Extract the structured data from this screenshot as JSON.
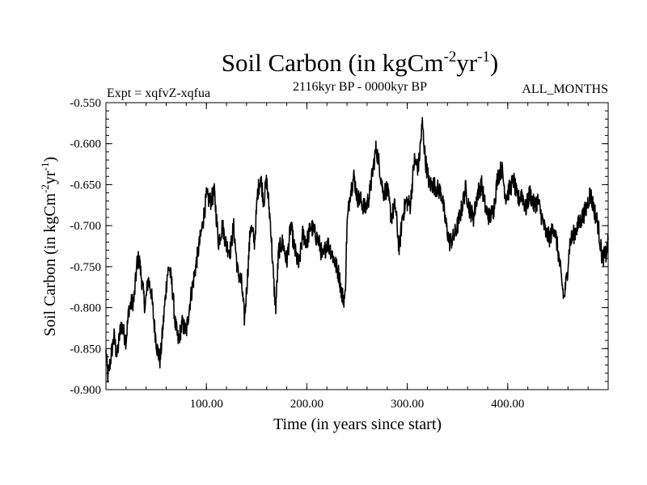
{
  "chart_data": {
    "type": "line",
    "title": "Soil Carbon (in kgCm",
    "title_unit": {
      "sup1": "-2",
      "mid": "yr",
      "sup2": "-1",
      "tail": ")"
    },
    "subtitle_left": "Expt = xqfvZ-xqfua",
    "subtitle_center": "2116kyr BP - 0000kyr BP",
    "subtitle_right": "ALL_MONTHS",
    "xlabel": "Time (in years since start)",
    "ylabel": "Soil Carbon (in kgCm",
    "ylabel_unit": {
      "sup1": "-2",
      "mid": "yr",
      "sup2": "-1",
      "tail": ")"
    },
    "xlim": [
      0,
      500
    ],
    "ylim": [
      -0.9,
      -0.55
    ],
    "x_ticks": [
      100,
      200,
      300,
      400
    ],
    "x_tick_labels": [
      "100.00",
      "200.00",
      "300.00",
      "400.00"
    ],
    "y_ticks": [
      -0.9,
      -0.85,
      -0.8,
      -0.75,
      -0.7,
      -0.65,
      -0.6,
      -0.55
    ],
    "y_tick_labels": [
      "-0.900",
      "-0.850",
      "-0.800",
      "-0.750",
      "-0.700",
      "-0.650",
      "-0.600",
      "-0.550"
    ],
    "color": "#000000",
    "series": [
      {
        "name": "Soil Carbon",
        "keypoints": [
          [
            0,
            -0.855
          ],
          [
            2,
            -0.885
          ],
          [
            5,
            -0.86
          ],
          [
            8,
            -0.835
          ],
          [
            11,
            -0.86
          ],
          [
            15,
            -0.82
          ],
          [
            20,
            -0.84
          ],
          [
            23,
            -0.8
          ],
          [
            28,
            -0.79
          ],
          [
            31,
            -0.745
          ],
          [
            33,
            -0.74
          ],
          [
            36,
            -0.77
          ],
          [
            39,
            -0.8
          ],
          [
            42,
            -0.765
          ],
          [
            45,
            -0.78
          ],
          [
            48,
            -0.82
          ],
          [
            51,
            -0.85
          ],
          [
            54,
            -0.865
          ],
          [
            57,
            -0.82
          ],
          [
            61,
            -0.76
          ],
          [
            63,
            -0.75
          ],
          [
            66,
            -0.775
          ],
          [
            69,
            -0.82
          ],
          [
            72,
            -0.84
          ],
          [
            76,
            -0.82
          ],
          [
            80,
            -0.83
          ],
          [
            84,
            -0.79
          ],
          [
            88,
            -0.76
          ],
          [
            92,
            -0.73
          ],
          [
            96,
            -0.7
          ],
          [
            100,
            -0.665
          ],
          [
            104,
            -0.67
          ],
          [
            108,
            -0.66
          ],
          [
            112,
            -0.72
          ],
          [
            116,
            -0.7
          ],
          [
            120,
            -0.725
          ],
          [
            124,
            -0.73
          ],
          [
            127,
            -0.7
          ],
          [
            131,
            -0.755
          ],
          [
            135,
            -0.77
          ],
          [
            138,
            -0.815
          ],
          [
            141,
            -0.76
          ],
          [
            144,
            -0.7
          ],
          [
            148,
            -0.72
          ],
          [
            151,
            -0.66
          ],
          [
            154,
            -0.64
          ],
          [
            157,
            -0.67
          ],
          [
            160,
            -0.645
          ],
          [
            164,
            -0.7
          ],
          [
            167,
            -0.77
          ],
          [
            169,
            -0.8
          ],
          [
            172,
            -0.73
          ],
          [
            176,
            -0.72
          ],
          [
            180,
            -0.745
          ],
          [
            184,
            -0.7
          ],
          [
            188,
            -0.73
          ],
          [
            192,
            -0.75
          ],
          [
            196,
            -0.71
          ],
          [
            200,
            -0.72
          ],
          [
            204,
            -0.7
          ],
          [
            208,
            -0.71
          ],
          [
            212,
            -0.72
          ],
          [
            216,
            -0.74
          ],
          [
            220,
            -0.72
          ],
          [
            224,
            -0.73
          ],
          [
            228,
            -0.745
          ],
          [
            232,
            -0.76
          ],
          [
            235,
            -0.785
          ],
          [
            238,
            -0.79
          ],
          [
            240,
            -0.7
          ],
          [
            243,
            -0.66
          ],
          [
            247,
            -0.64
          ],
          [
            250,
            -0.665
          ],
          [
            254,
            -0.67
          ],
          [
            258,
            -0.68
          ],
          [
            262,
            -0.665
          ],
          [
            266,
            -0.63
          ],
          [
            269,
            -0.605
          ],
          [
            272,
            -0.625
          ],
          [
            276,
            -0.66
          ],
          [
            280,
            -0.655
          ],
          [
            284,
            -0.69
          ],
          [
            288,
            -0.675
          ],
          [
            292,
            -0.73
          ],
          [
            295,
            -0.69
          ],
          [
            299,
            -0.67
          ],
          [
            303,
            -0.675
          ],
          [
            307,
            -0.62
          ],
          [
            311,
            -0.63
          ],
          [
            315,
            -0.575
          ],
          [
            318,
            -0.62
          ],
          [
            322,
            -0.65
          ],
          [
            326,
            -0.65
          ],
          [
            330,
            -0.655
          ],
          [
            334,
            -0.66
          ],
          [
            338,
            -0.695
          ],
          [
            342,
            -0.72
          ],
          [
            346,
            -0.715
          ],
          [
            350,
            -0.7
          ],
          [
            354,
            -0.68
          ],
          [
            358,
            -0.655
          ],
          [
            362,
            -0.68
          ],
          [
            366,
            -0.69
          ],
          [
            370,
            -0.66
          ],
          [
            374,
            -0.65
          ],
          [
            378,
            -0.68
          ],
          [
            382,
            -0.69
          ],
          [
            386,
            -0.68
          ],
          [
            390,
            -0.64
          ],
          [
            394,
            -0.63
          ],
          [
            398,
            -0.665
          ],
          [
            402,
            -0.655
          ],
          [
            406,
            -0.645
          ],
          [
            410,
            -0.67
          ],
          [
            414,
            -0.66
          ],
          [
            418,
            -0.68
          ],
          [
            422,
            -0.66
          ],
          [
            426,
            -0.675
          ],
          [
            430,
            -0.67
          ],
          [
            434,
            -0.69
          ],
          [
            438,
            -0.71
          ],
          [
            442,
            -0.715
          ],
          [
            446,
            -0.7
          ],
          [
            450,
            -0.73
          ],
          [
            453,
            -0.76
          ],
          [
            456,
            -0.79
          ],
          [
            459,
            -0.76
          ],
          [
            462,
            -0.72
          ],
          [
            466,
            -0.71
          ],
          [
            470,
            -0.7
          ],
          [
            474,
            -0.69
          ],
          [
            478,
            -0.68
          ],
          [
            482,
            -0.66
          ],
          [
            486,
            -0.68
          ],
          [
            490,
            -0.7
          ],
          [
            494,
            -0.74
          ],
          [
            498,
            -0.735
          ],
          [
            500,
            -0.72
          ]
        ],
        "noise_amplitude": 0.012,
        "samples": 1600
      }
    ]
  }
}
